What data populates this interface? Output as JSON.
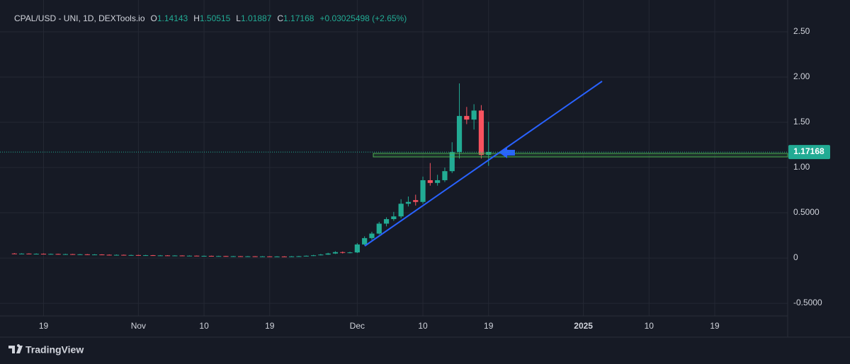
{
  "chart_data": {
    "type": "candlestick",
    "title": "CPAL/USD - UNI, 1D, DEXTools.io",
    "ohlc_labels": [
      "O",
      "H",
      "L",
      "C"
    ],
    "change": "+0.03025498 (+2.65%)",
    "brand": "TradingView",
    "up_color": "#22ab94",
    "down_color": "#f7525f",
    "categories": [
      null,
      null,
      null,
      null,
      null,
      null,
      null,
      null,
      null,
      null,
      null,
      null,
      null,
      null,
      null,
      null,
      null,
      null,
      null,
      null,
      null,
      null,
      null,
      null,
      null,
      null,
      null,
      null,
      null,
      null,
      null,
      null,
      null,
      null,
      null,
      null,
      null,
      null,
      null,
      null,
      null,
      null,
      null,
      null,
      null,
      null,
      null,
      null,
      null,
      null,
      null,
      null,
      null,
      null,
      null,
      null,
      null,
      null,
      null,
      null,
      null,
      null,
      null,
      null,
      null,
      null
    ],
    "open": [
      0.05,
      0.048,
      0.049,
      0.046,
      0.047,
      0.044,
      0.045,
      0.042,
      0.043,
      0.04,
      0.041,
      0.038,
      0.039,
      0.036,
      0.034,
      0.035,
      0.032,
      0.033,
      0.03,
      0.031,
      0.028,
      0.029,
      0.027,
      0.028,
      0.025,
      0.026,
      0.023,
      0.024,
      0.021,
      0.022,
      0.019,
      0.02,
      0.018,
      0.019,
      0.017,
      0.018,
      0.016,
      0.017,
      0.016,
      0.018,
      0.02,
      0.025,
      0.03,
      0.038,
      0.05,
      0.065,
      0.058,
      0.062,
      0.15,
      0.22,
      0.27,
      0.38,
      0.43,
      0.46,
      0.6,
      0.64,
      0.62,
      0.86,
      0.83,
      0.86,
      0.96,
      1.17,
      1.57,
      1.53,
      1.63,
      1.14143
    ],
    "high": [
      0.055,
      0.053,
      0.052,
      0.051,
      0.05,
      0.049,
      0.048,
      0.047,
      0.046,
      0.045,
      0.044,
      0.043,
      0.042,
      0.04,
      0.039,
      0.038,
      0.037,
      0.036,
      0.035,
      0.034,
      0.033,
      0.032,
      0.031,
      0.03,
      0.029,
      0.028,
      0.027,
      0.026,
      0.025,
      0.024,
      0.023,
      0.022,
      0.022,
      0.021,
      0.021,
      0.02,
      0.02,
      0.02,
      0.022,
      0.024,
      0.028,
      0.035,
      0.045,
      0.058,
      0.075,
      0.072,
      0.07,
      0.165,
      0.24,
      0.29,
      0.4,
      0.45,
      0.51,
      0.65,
      0.68,
      0.7,
      0.9,
      1.05,
      0.92,
      1.0,
      1.28,
      1.93,
      1.67,
      1.7,
      1.69,
      1.50515
    ],
    "low": [
      0.045,
      0.046,
      0.044,
      0.043,
      0.042,
      0.041,
      0.04,
      0.039,
      0.038,
      0.037,
      0.035,
      0.035,
      0.033,
      0.031,
      0.031,
      0.03,
      0.029,
      0.028,
      0.027,
      0.026,
      0.025,
      0.024,
      0.024,
      0.022,
      0.022,
      0.02,
      0.02,
      0.018,
      0.018,
      0.016,
      0.016,
      0.015,
      0.015,
      0.014,
      0.014,
      0.013,
      0.013,
      0.013,
      0.014,
      0.015,
      0.018,
      0.022,
      0.028,
      0.035,
      0.045,
      0.05,
      0.052,
      0.055,
      0.14,
      0.2,
      0.26,
      0.35,
      0.41,
      0.44,
      0.57,
      0.58,
      0.6,
      0.8,
      0.8,
      0.84,
      0.94,
      1.1,
      1.48,
      1.42,
      1.1,
      1.01887
    ],
    "close": [
      0.048,
      0.049,
      0.046,
      0.047,
      0.044,
      0.045,
      0.042,
      0.043,
      0.04,
      0.041,
      0.038,
      0.039,
      0.036,
      0.034,
      0.035,
      0.032,
      0.033,
      0.03,
      0.031,
      0.028,
      0.029,
      0.027,
      0.028,
      0.025,
      0.026,
      0.023,
      0.024,
      0.021,
      0.022,
      0.019,
      0.02,
      0.018,
      0.019,
      0.017,
      0.018,
      0.016,
      0.017,
      0.016,
      0.018,
      0.02,
      0.025,
      0.03,
      0.038,
      0.05,
      0.065,
      0.058,
      0.062,
      0.15,
      0.22,
      0.27,
      0.38,
      0.43,
      0.46,
      0.6,
      0.62,
      0.62,
      0.86,
      0.83,
      0.86,
      0.96,
      1.17,
      1.57,
      1.53,
      1.63,
      1.14,
      1.17168
    ],
    "xlim": [
      -1,
      106
    ],
    "xticks": [
      {
        "value": 4,
        "label": "19"
      },
      {
        "value": 17,
        "label": "Nov"
      },
      {
        "value": 26,
        "label": "10"
      },
      {
        "value": 35,
        "label": "19"
      },
      {
        "value": 47,
        "label": "Dec"
      },
      {
        "value": 56,
        "label": "10"
      },
      {
        "value": 65,
        "label": "19"
      },
      {
        "value": 78,
        "label": "2025"
      },
      {
        "value": 87,
        "label": "10"
      },
      {
        "value": 96,
        "label": "19"
      }
    ],
    "ylim": [
      -0.64,
      2.758
    ],
    "yticks": [
      {
        "value": -0.5,
        "label": "-0.5000"
      },
      0,
      {
        "value": 0.5,
        "label": "0.5000"
      },
      {
        "value": 1,
        "label": "1.00"
      },
      {
        "value": 1.5,
        "label": "1.50"
      },
      {
        "value": 2,
        "label": "2.00"
      },
      {
        "value": 2.5,
        "label": "2.50"
      }
    ],
    "grid": true
  }
}
